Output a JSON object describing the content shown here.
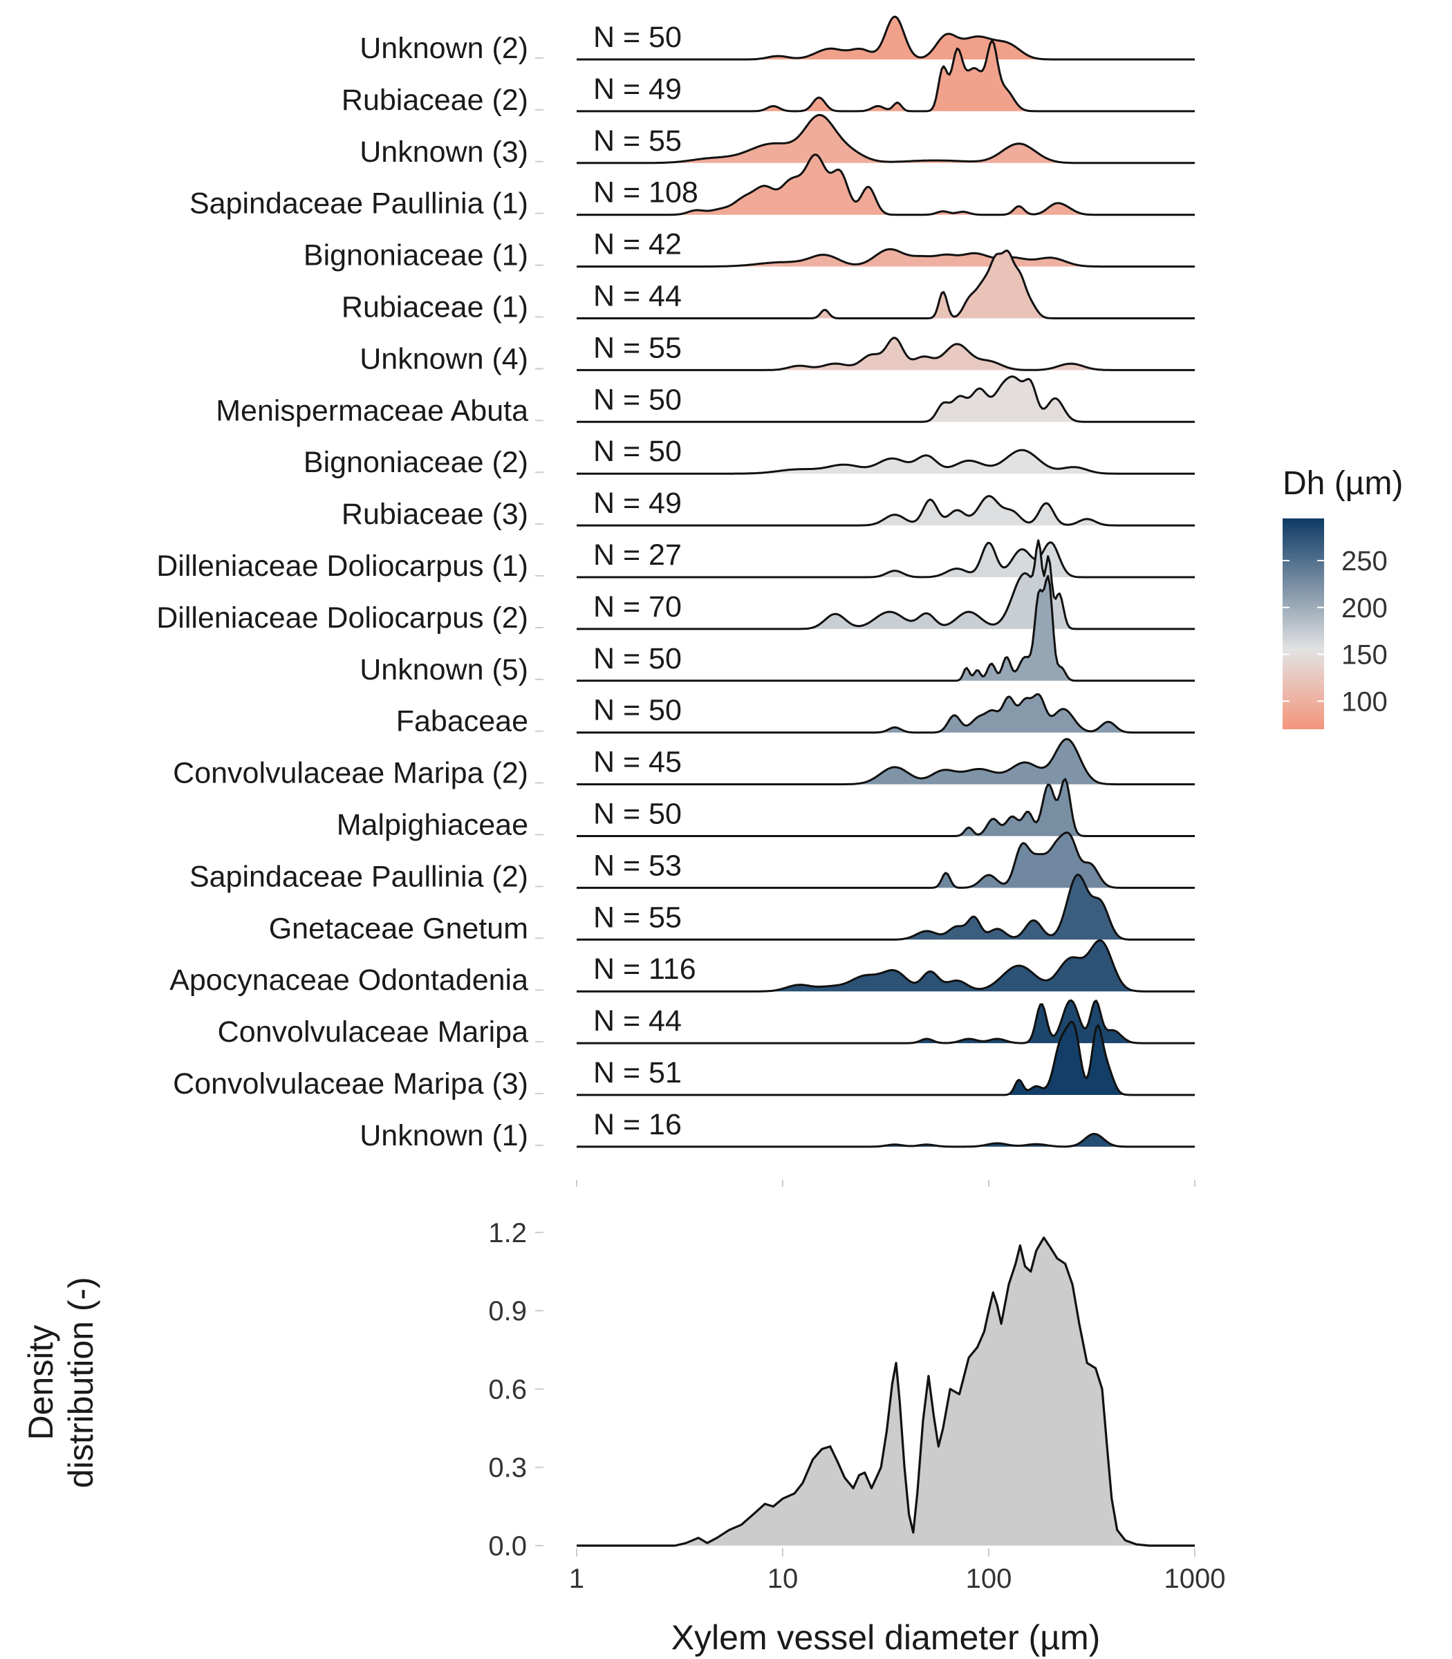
{
  "chart_data": {
    "type": "ridgeline",
    "xlabel": "Xylem vessel diameter (µm)",
    "x_scale": "log10",
    "xlim": [
      1,
      1000
    ],
    "x_ticks": [
      1,
      10,
      100,
      1000
    ],
    "x_tick_labels": [
      "1",
      "10",
      "100",
      "1000"
    ],
    "legend": {
      "title": "Dh (µm)",
      "position": "right",
      "range": [
        70,
        295
      ],
      "ticks": [
        100,
        150,
        200,
        250
      ],
      "tick_labels": [
        "100",
        "150",
        "200",
        "250"
      ],
      "colors": {
        "low": "#f4957c",
        "mid": "#e2e2e2",
        "high": "#0e3a64"
      }
    },
    "groups": [
      {
        "label": "Unknown (2)",
        "n_label": "N = 50",
        "dh": 82,
        "peaks": [
          [
            9.5,
            0.08,
            0.05
          ],
          [
            17,
            0.25,
            0.07
          ],
          [
            24,
            0.22,
            0.05
          ],
          [
            35,
            1.0,
            0.045
          ],
          [
            62,
            0.5,
            0.05
          ],
          [
            88,
            0.52,
            0.08
          ],
          [
            125,
            0.3,
            0.06
          ]
        ]
      },
      {
        "label": "Rubiaceae (2)",
        "n_label": "N = 49",
        "dh": 84,
        "peaks": [
          [
            9,
            0.12,
            0.03
          ],
          [
            15,
            0.32,
            0.03
          ],
          [
            29,
            0.12,
            0.03
          ],
          [
            36,
            0.2,
            0.02
          ],
          [
            60,
            1.0,
            0.022
          ],
          [
            70,
            1.2,
            0.025
          ],
          [
            85,
            1.0,
            0.05
          ],
          [
            104,
            1.28,
            0.025
          ],
          [
            120,
            0.5,
            0.04
          ]
        ]
      },
      {
        "label": "Unknown (3)",
        "n_label": "N = 55",
        "dh": 95,
        "peaks": [
          [
            4.5,
            0.1,
            0.1
          ],
          [
            9,
            0.45,
            0.12
          ],
          [
            15,
            0.95,
            0.07
          ],
          [
            20,
            0.3,
            0.08
          ],
          [
            55,
            0.06,
            0.15
          ],
          [
            140,
            0.45,
            0.08
          ]
        ]
      },
      {
        "label": "Sapindaceae Paullinia (1)",
        "n_label": "N = 108",
        "dh": 92,
        "peaks": [
          [
            3.8,
            0.1,
            0.04
          ],
          [
            5,
            0.12,
            0.05
          ],
          [
            6.5,
            0.35,
            0.05
          ],
          [
            8.2,
            0.6,
            0.05
          ],
          [
            11,
            0.75,
            0.05
          ],
          [
            14.5,
            1.35,
            0.05
          ],
          [
            19,
            0.95,
            0.04
          ],
          [
            26,
            0.65,
            0.035
          ],
          [
            60,
            0.08,
            0.03
          ],
          [
            75,
            0.07,
            0.03
          ],
          [
            140,
            0.2,
            0.025
          ],
          [
            210,
            0.22,
            0.04
          ],
          [
            240,
            0.12,
            0.04
          ]
        ]
      },
      {
        "label": "Bignoniaceae (1)",
        "n_label": "N = 42",
        "dh": 100,
        "peaks": [
          [
            10,
            0.1,
            0.12
          ],
          [
            16,
            0.25,
            0.07
          ],
          [
            33,
            0.4,
            0.07
          ],
          [
            48,
            0.2,
            0.06
          ],
          [
            62,
            0.2,
            0.05
          ],
          [
            85,
            0.3,
            0.07
          ],
          [
            130,
            0.2,
            0.07
          ],
          [
            200,
            0.2,
            0.07
          ]
        ]
      },
      {
        "label": "Rubiaceae (1)",
        "n_label": "N = 44",
        "dh": 120,
        "peaks": [
          [
            16,
            0.2,
            0.02
          ],
          [
            60,
            0.62,
            0.02
          ],
          [
            80,
            0.35,
            0.03
          ],
          [
            95,
            0.8,
            0.04
          ],
          [
            110,
            1.15,
            0.03
          ],
          [
            124,
            1.1,
            0.025
          ],
          [
            140,
            0.95,
            0.03
          ],
          [
            160,
            0.3,
            0.03
          ]
        ]
      },
      {
        "label": "Unknown (4)",
        "n_label": "N = 55",
        "dh": 128,
        "peaks": [
          [
            12,
            0.1,
            0.05
          ],
          [
            18,
            0.15,
            0.06
          ],
          [
            27,
            0.35,
            0.05
          ],
          [
            35,
            0.72,
            0.04
          ],
          [
            48,
            0.3,
            0.05
          ],
          [
            70,
            0.6,
            0.06
          ],
          [
            100,
            0.2,
            0.06
          ],
          [
            250,
            0.15,
            0.06
          ]
        ]
      },
      {
        "label": "Menispermaceae Abuta",
        "n_label": "N = 50",
        "dh": 150,
        "peaks": [
          [
            60,
            0.4,
            0.03
          ],
          [
            72,
            0.55,
            0.035
          ],
          [
            90,
            0.75,
            0.04
          ],
          [
            115,
            0.65,
            0.04
          ],
          [
            135,
            0.85,
            0.04
          ],
          [
            160,
            0.8,
            0.03
          ],
          [
            210,
            0.55,
            0.04
          ]
        ]
      },
      {
        "label": "Bignoniaceae (2)",
        "n_label": "N = 50",
        "dh": 155,
        "peaks": [
          [
            12,
            0.1,
            0.1
          ],
          [
            20,
            0.2,
            0.08
          ],
          [
            34,
            0.35,
            0.07
          ],
          [
            50,
            0.4,
            0.05
          ],
          [
            80,
            0.3,
            0.07
          ],
          [
            145,
            0.55,
            0.08
          ],
          [
            260,
            0.15,
            0.06
          ]
        ]
      },
      {
        "label": "Rubiaceae (3)",
        "n_label": "N = 49",
        "dh": 158,
        "peaks": [
          [
            35,
            0.25,
            0.05
          ],
          [
            52,
            0.6,
            0.035
          ],
          [
            70,
            0.35,
            0.04
          ],
          [
            100,
            0.68,
            0.05
          ],
          [
            130,
            0.3,
            0.04
          ],
          [
            190,
            0.52,
            0.035
          ],
          [
            300,
            0.15,
            0.04
          ]
        ]
      },
      {
        "label": "Dilleniaceae Doliocarpus (1)",
        "n_label": "N = 27",
        "dh": 162,
        "peaks": [
          [
            35,
            0.15,
            0.04
          ],
          [
            70,
            0.2,
            0.05
          ],
          [
            100,
            0.8,
            0.035
          ],
          [
            145,
            0.65,
            0.05
          ],
          [
            200,
            0.8,
            0.04
          ]
        ]
      },
      {
        "label": "Dilleniaceae Doliocarpus (2)",
        "n_label": "N = 70",
        "dh": 172,
        "peaks": [
          [
            18,
            0.35,
            0.05
          ],
          [
            33,
            0.4,
            0.07
          ],
          [
            50,
            0.35,
            0.04
          ],
          [
            80,
            0.4,
            0.06
          ],
          [
            150,
            1.3,
            0.06
          ],
          [
            175,
            1.35,
            0.015
          ],
          [
            195,
            1.45,
            0.015
          ],
          [
            220,
            0.8,
            0.02
          ]
        ]
      },
      {
        "label": "Unknown (5)",
        "n_label": "N = 50",
        "dh": 205,
        "peaks": [
          [
            78,
            0.3,
            0.015
          ],
          [
            88,
            0.25,
            0.015
          ],
          [
            103,
            0.4,
            0.02
          ],
          [
            122,
            0.55,
            0.02
          ],
          [
            150,
            0.55,
            0.03
          ],
          [
            175,
            1.9,
            0.02
          ],
          [
            195,
            2.3,
            0.02
          ],
          [
            225,
            0.3,
            0.02
          ]
        ]
      },
      {
        "label": "Fabaceae",
        "n_label": "N = 50",
        "dh": 215,
        "peaks": [
          [
            35,
            0.12,
            0.03
          ],
          [
            68,
            0.4,
            0.03
          ],
          [
            90,
            0.35,
            0.04
          ],
          [
            105,
            0.4,
            0.03
          ],
          [
            125,
            0.8,
            0.03
          ],
          [
            150,
            0.7,
            0.03
          ],
          [
            175,
            0.8,
            0.03
          ],
          [
            230,
            0.55,
            0.05
          ],
          [
            380,
            0.25,
            0.035
          ]
        ]
      },
      {
        "label": "Convolvulaceae Maripa (2)",
        "n_label": "N = 45",
        "dh": 220,
        "peaks": [
          [
            35,
            0.4,
            0.07
          ],
          [
            60,
            0.3,
            0.06
          ],
          [
            90,
            0.35,
            0.08
          ],
          [
            150,
            0.5,
            0.07
          ],
          [
            240,
            1.05,
            0.06
          ]
        ]
      },
      {
        "label": "Malpighiaceae",
        "n_label": "N = 50",
        "dh": 225,
        "peaks": [
          [
            80,
            0.2,
            0.02
          ],
          [
            105,
            0.4,
            0.03
          ],
          [
            130,
            0.45,
            0.03
          ],
          [
            155,
            0.55,
            0.025
          ],
          [
            195,
            1.2,
            0.03
          ],
          [
            235,
            1.3,
            0.025
          ]
        ]
      },
      {
        "label": "Sapindaceae Paullinia (2)",
        "n_label": "N = 53",
        "dh": 230,
        "peaks": [
          [
            62,
            0.35,
            0.02
          ],
          [
            100,
            0.3,
            0.04
          ],
          [
            145,
            0.95,
            0.035
          ],
          [
            175,
            0.65,
            0.04
          ],
          [
            215,
            0.9,
            0.04
          ],
          [
            250,
            0.95,
            0.035
          ],
          [
            310,
            0.55,
            0.04
          ]
        ]
      },
      {
        "label": "Gnetaceae Gnetum",
        "n_label": "N = 55",
        "dh": 265,
        "peaks": [
          [
            50,
            0.2,
            0.05
          ],
          [
            70,
            0.3,
            0.04
          ],
          [
            85,
            0.5,
            0.03
          ],
          [
            110,
            0.25,
            0.04
          ],
          [
            165,
            0.45,
            0.04
          ],
          [
            270,
            1.5,
            0.05
          ],
          [
            350,
            0.8,
            0.04
          ]
        ]
      },
      {
        "label": "Apocynaceae Odontadenia",
        "n_label": "N = 116",
        "dh": 275,
        "peaks": [
          [
            12,
            0.15,
            0.06
          ],
          [
            17,
            0.1,
            0.06
          ],
          [
            25,
            0.35,
            0.07
          ],
          [
            35,
            0.45,
            0.06
          ],
          [
            52,
            0.45,
            0.04
          ],
          [
            70,
            0.25,
            0.05
          ],
          [
            140,
            0.6,
            0.08
          ],
          [
            250,
            0.75,
            0.06
          ],
          [
            350,
            1.15,
            0.055
          ]
        ]
      },
      {
        "label": "Convolvulaceae Maripa",
        "n_label": "N = 44",
        "dh": 285,
        "peaks": [
          [
            50,
            0.1,
            0.03
          ],
          [
            80,
            0.1,
            0.04
          ],
          [
            110,
            0.1,
            0.04
          ],
          [
            180,
            0.92,
            0.025
          ],
          [
            250,
            1.0,
            0.04
          ],
          [
            330,
            0.95,
            0.025
          ],
          [
            400,
            0.3,
            0.04
          ]
        ]
      },
      {
        "label": "Convolvulaceae Maripa (3)",
        "n_label": "N = 51",
        "dh": 292,
        "peaks": [
          [
            140,
            0.35,
            0.02
          ],
          [
            170,
            0.2,
            0.03
          ],
          [
            225,
            1.2,
            0.035
          ],
          [
            260,
            1.4,
            0.03
          ],
          [
            335,
            1.45,
            0.025
          ],
          [
            375,
            0.6,
            0.03
          ]
        ]
      },
      {
        "label": "Unknown (1)",
        "n_label": "N = 16",
        "dh": 280,
        "peaks": [
          [
            35,
            0.05,
            0.04
          ],
          [
            50,
            0.05,
            0.04
          ],
          [
            110,
            0.08,
            0.05
          ],
          [
            170,
            0.06,
            0.05
          ],
          [
            325,
            0.3,
            0.045
          ]
        ]
      }
    ],
    "overall": {
      "type": "area",
      "ylabel": "Density\ndistribution (-)",
      "ylim": [
        0,
        1.25
      ],
      "y_ticks": [
        0,
        0.3,
        0.6,
        0.9,
        1.2
      ],
      "y_tick_labels": [
        "0.0",
        "0.3",
        "0.6",
        "0.9",
        "1.2"
      ],
      "fill": "#cccccc",
      "points": [
        [
          1,
          0
        ],
        [
          3,
          0
        ],
        [
          3.4,
          0.01
        ],
        [
          3.9,
          0.03
        ],
        [
          4.3,
          0.01
        ],
        [
          4.8,
          0.03
        ],
        [
          5.5,
          0.06
        ],
        [
          6.3,
          0.08
        ],
        [
          7.2,
          0.12
        ],
        [
          8.2,
          0.16
        ],
        [
          9,
          0.15
        ],
        [
          10,
          0.18
        ],
        [
          11.4,
          0.2
        ],
        [
          12.5,
          0.24
        ],
        [
          14,
          0.33
        ],
        [
          15.5,
          0.37
        ],
        [
          17,
          0.38
        ],
        [
          18.5,
          0.32
        ],
        [
          20,
          0.26
        ],
        [
          22,
          0.22
        ],
        [
          23.5,
          0.27
        ],
        [
          25,
          0.28
        ],
        [
          27,
          0.22
        ],
        [
          30,
          0.3
        ],
        [
          32,
          0.44
        ],
        [
          34,
          0.62
        ],
        [
          35.5,
          0.7
        ],
        [
          37,
          0.55
        ],
        [
          39,
          0.3
        ],
        [
          41,
          0.12
        ],
        [
          43,
          0.05
        ],
        [
          45,
          0.2
        ],
        [
          48,
          0.48
        ],
        [
          51,
          0.65
        ],
        [
          54,
          0.5
        ],
        [
          57,
          0.38
        ],
        [
          60,
          0.45
        ],
        [
          65,
          0.6
        ],
        [
          72,
          0.58
        ],
        [
          80,
          0.72
        ],
        [
          88,
          0.76
        ],
        [
          95,
          0.82
        ],
        [
          100,
          0.9
        ],
        [
          105,
          0.97
        ],
        [
          110,
          0.92
        ],
        [
          115,
          0.85
        ],
        [
          125,
          1.0
        ],
        [
          135,
          1.08
        ],
        [
          142,
          1.15
        ],
        [
          150,
          1.07
        ],
        [
          160,
          1.05
        ],
        [
          170,
          1.13
        ],
        [
          185,
          1.18
        ],
        [
          200,
          1.14
        ],
        [
          215,
          1.1
        ],
        [
          235,
          1.08
        ],
        [
          255,
          1.0
        ],
        [
          275,
          0.85
        ],
        [
          300,
          0.7
        ],
        [
          330,
          0.68
        ],
        [
          355,
          0.6
        ],
        [
          375,
          0.38
        ],
        [
          395,
          0.18
        ],
        [
          420,
          0.06
        ],
        [
          460,
          0.02
        ],
        [
          520,
          0.005
        ],
        [
          600,
          0
        ],
        [
          1000,
          0
        ]
      ]
    }
  }
}
